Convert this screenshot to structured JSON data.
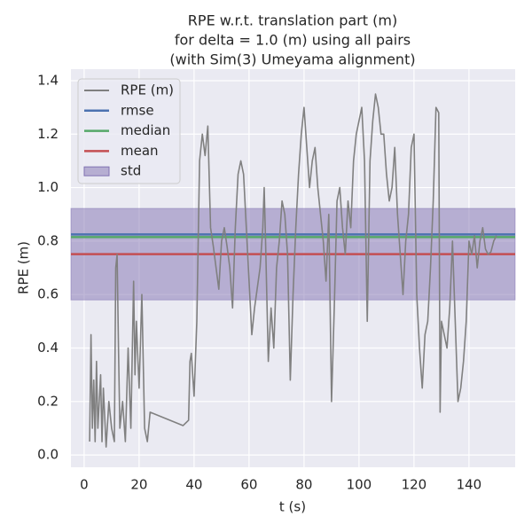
{
  "chart_data": {
    "type": "line",
    "title": [
      "RPE w.r.t. translation part (m)",
      "for delta = 1.0 (m) using all pairs",
      "(with Sim(3) Umeyama alignment)"
    ],
    "x_label": "t (s)",
    "y_label": "RPE (m)",
    "xlim": [
      -4.8,
      156.8
    ],
    "xticks": [
      0,
      20,
      40,
      60,
      80,
      100,
      120,
      140
    ],
    "ylim": [
      -0.046,
      1.443
    ],
    "yticks": [
      {
        "value": 0,
        "label": "0.0"
      },
      0.2,
      0.4,
      0.6,
      0.8,
      {
        "value": 1,
        "label": "1.0"
      },
      1.2,
      1.4
    ],
    "grid": true,
    "legend": "upper left",
    "series": [
      {
        "name": "RPE (m)",
        "color": "#808080",
        "x": [
          2,
          2.5,
          3,
          3.5,
          4,
          4.5,
          5,
          6,
          6.5,
          7,
          8,
          9,
          10,
          11,
          11.5,
          12,
          12.5,
          13,
          14,
          15,
          16,
          17,
          18,
          18.5,
          19,
          20,
          21,
          22,
          23,
          24,
          36,
          38,
          38.5,
          39,
          40,
          41,
          42,
          43,
          44,
          45,
          46,
          47,
          48,
          49,
          50,
          51,
          52,
          53,
          54,
          55,
          56,
          57,
          58,
          59,
          60,
          61,
          62,
          64,
          65,
          65.5,
          66,
          67,
          68,
          69,
          70,
          71,
          72,
          73,
          74,
          75,
          76,
          77,
          78,
          79,
          80,
          81,
          82,
          83,
          84,
          85,
          86,
          87,
          88,
          89,
          90,
          91,
          92,
          93,
          94,
          95,
          96,
          97,
          98,
          99,
          100,
          101,
          102,
          102.5,
          103,
          104,
          105,
          106,
          107,
          108,
          109,
          110,
          111,
          112,
          113,
          114,
          115,
          116,
          117,
          118,
          119,
          120,
          121,
          122,
          123,
          124,
          125,
          126,
          127,
          128,
          129,
          129.5,
          130,
          131,
          132,
          133,
          134,
          135,
          136,
          137,
          138,
          139,
          140,
          141,
          142,
          143,
          144,
          145,
          146,
          147,
          148,
          149,
          150
        ],
        "values": [
          0.05,
          0.45,
          0.1,
          0.28,
          0.05,
          0.35,
          0.1,
          0.3,
          0.05,
          0.25,
          0.03,
          0.2,
          0.1,
          0.05,
          0.7,
          0.75,
          0.4,
          0.1,
          0.2,
          0.05,
          0.4,
          0.1,
          0.65,
          0.3,
          0.5,
          0.25,
          0.6,
          0.1,
          0.05,
          0.16,
          0.11,
          0.13,
          0.35,
          0.38,
          0.22,
          0.5,
          1.1,
          1.2,
          1.12,
          1.23,
          0.85,
          0.78,
          0.7,
          0.62,
          0.8,
          0.85,
          0.78,
          0.7,
          0.55,
          0.85,
          1.05,
          1.1,
          1.05,
          0.85,
          0.65,
          0.45,
          0.55,
          0.7,
          0.85,
          1.0,
          0.8,
          0.35,
          0.55,
          0.4,
          0.7,
          0.8,
          0.95,
          0.9,
          0.75,
          0.28,
          0.6,
          0.85,
          1.05,
          1.2,
          1.3,
          1.15,
          1.0,
          1.1,
          1.15,
          1.0,
          0.9,
          0.8,
          0.65,
          0.9,
          0.2,
          0.55,
          0.95,
          1.0,
          0.85,
          0.75,
          0.95,
          0.85,
          1.1,
          1.2,
          1.25,
          1.3,
          1.1,
          0.8,
          0.5,
          1.1,
          1.25,
          1.35,
          1.3,
          1.2,
          1.2,
          1.05,
          0.95,
          1.0,
          1.15,
          0.9,
          0.75,
          0.6,
          0.8,
          0.9,
          1.15,
          1.2,
          0.6,
          0.4,
          0.25,
          0.45,
          0.5,
          0.7,
          0.95,
          1.3,
          1.28,
          0.16,
          0.5,
          0.45,
          0.4,
          0.55,
          0.8,
          0.5,
          0.2,
          0.25,
          0.35,
          0.5,
          0.8,
          0.75,
          0.82,
          0.7,
          0.8,
          0.85,
          0.77,
          0.75,
          0.76,
          0.8,
          0.82
        ]
      }
    ],
    "hlines": [
      {
        "name": "rmse",
        "color": "#4c72b0",
        "value": 0.825
      },
      {
        "name": "median",
        "color": "#55a868",
        "value": 0.815
      },
      {
        "name": "mean",
        "color": "#c44e52",
        "value": 0.751
      }
    ],
    "band": {
      "name": "std",
      "color": "#8172b2",
      "low": 0.58,
      "high": 0.922
    }
  }
}
